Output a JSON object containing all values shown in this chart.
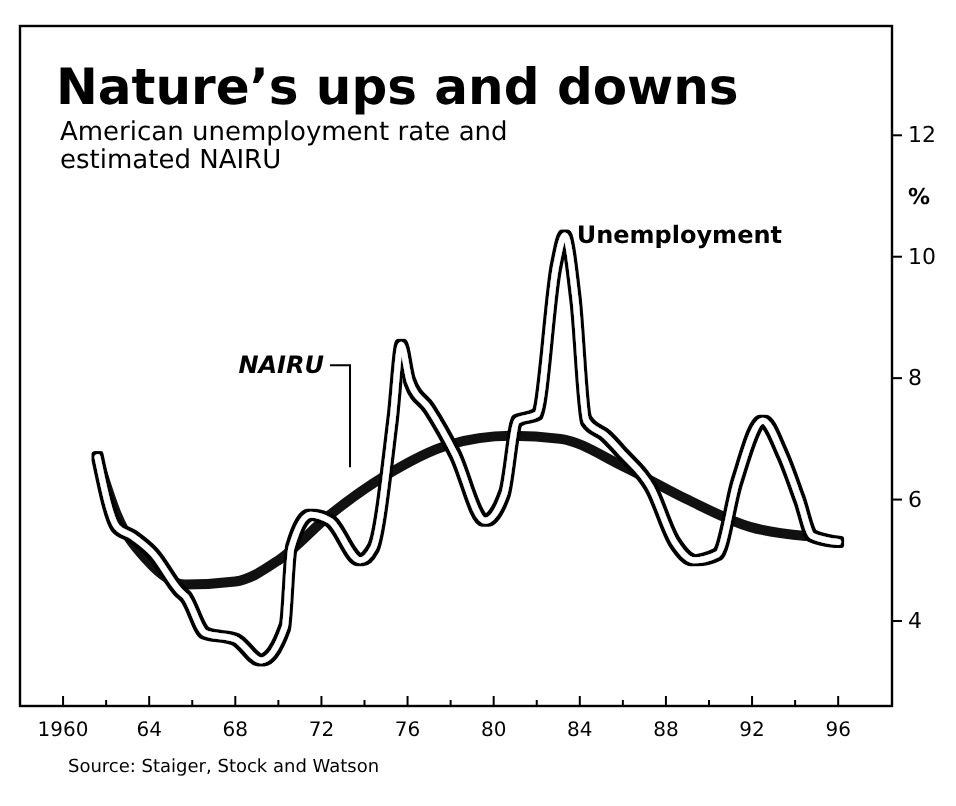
{
  "chart_data": {
    "type": "line",
    "title": "Nature’s ups and downs",
    "subtitle": "American unemployment rate and estimated NAIRU",
    "ylabel": "%",
    "annotations": [
      "Source: Staiger, Stock and Watson"
    ],
    "xlim": [
      1958,
      1998.5
    ],
    "xticks": [
      {
        "value": 1960,
        "label": "1960"
      },
      {
        "value": 1962,
        "label": null
      },
      {
        "value": 1964,
        "label": "64"
      },
      {
        "value": 1966,
        "label": null
      },
      {
        "value": 1968,
        "label": "68"
      },
      {
        "value": 1970,
        "label": null
      },
      {
        "value": 1972,
        "label": "72"
      },
      {
        "value": 1974,
        "label": null
      },
      {
        "value": 1976,
        "label": "76"
      },
      {
        "value": 1978,
        "label": null
      },
      {
        "value": 1980,
        "label": "80"
      },
      {
        "value": 1982,
        "label": null
      },
      {
        "value": 1984,
        "label": "84"
      },
      {
        "value": 1986,
        "label": null
      },
      {
        "value": 1988,
        "label": "88"
      },
      {
        "value": 1990,
        "label": null
      },
      {
        "value": 1992,
        "label": "92"
      },
      {
        "value": 1994,
        "label": null
      },
      {
        "value": 1996,
        "label": "96"
      }
    ],
    "ylim": [
      2.6,
      13.8
    ],
    "yticks": [
      4,
      6,
      8,
      10,
      12
    ],
    "grid": false,
    "legend": false,
    "marker": "none",
    "line_style": "solid",
    "series": [
      {
        "name": "Unemployment",
        "color": "#ffffff",
        "x": [
          1961.6,
          1962.5,
          1963.2,
          1964.2,
          1965.4,
          1965.7,
          1966.6,
          1968.0,
          1969.2,
          1970.3,
          1970.6,
          1971.5,
          1972.4,
          1973.8,
          1974.4,
          1975.3,
          1975.7,
          1976.1,
          1977.0,
          1978.2,
          1979.6,
          1980.5,
          1981.1,
          1982.0,
          1982.9,
          1983.3,
          1983.8,
          1984.3,
          1985.2,
          1986.0,
          1987.3,
          1988.4,
          1989.3,
          1990.4,
          1991.3,
          1992.5,
          1993.4,
          1994.2,
          1994.8,
          1996.0
        ],
        "values": [
          6.7,
          5.55,
          5.4,
          5.1,
          4.5,
          4.4,
          3.8,
          3.7,
          3.35,
          3.9,
          5.2,
          5.75,
          5.65,
          5.0,
          5.2,
          7.3,
          8.55,
          7.95,
          7.5,
          6.75,
          5.65,
          6.1,
          7.3,
          7.4,
          9.85,
          10.35,
          9.3,
          7.3,
          7.05,
          6.75,
          6.2,
          5.3,
          5.0,
          5.1,
          6.3,
          7.3,
          6.75,
          6.0,
          5.4,
          5.3
        ]
      },
      {
        "name": "NAIRU",
        "color": "#111111",
        "x": [
          1961.6,
          1962.5,
          1963.9,
          1965.7,
          1968.0,
          1970.0,
          1972.4,
          1975.0,
          1977.9,
          1980.8,
          1983.1,
          1986.0,
          1989.0,
          1991.9,
          1994.5
        ],
        "values": [
          6.7,
          5.75,
          5.0,
          4.6,
          4.65,
          5.0,
          5.75,
          6.4,
          6.9,
          7.05,
          7.0,
          6.55,
          6.0,
          5.55,
          5.4
        ]
      }
    ]
  }
}
